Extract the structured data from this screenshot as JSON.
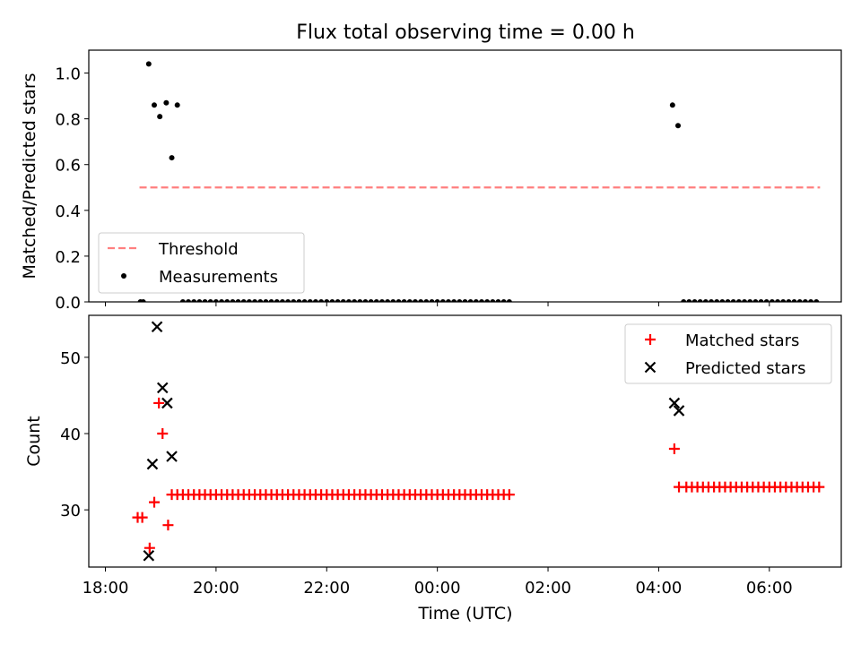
{
  "figure": {
    "title": "Flux total observing time = 0.00 h",
    "xlabel": "Time (UTC)"
  },
  "colors": {
    "threshold": "#ff7f7f",
    "measurement": "#000000",
    "matched": "#ff0000",
    "predicted": "#000000"
  },
  "chart_data": [
    {
      "type": "scatter",
      "title": "Flux total observing time = 0.00 h",
      "xlabel": "",
      "ylabel": "Matched/Predicted stars",
      "ylim": [
        0,
        1.1
      ],
      "yticks": [
        "0.0",
        "0.2",
        "0.4",
        "0.6",
        "0.8",
        "1.0"
      ],
      "legend": {
        "position": "lower-left",
        "entries": [
          "Threshold",
          "Measurements"
        ]
      },
      "series": [
        {
          "name": "Threshold",
          "kind": "dashed-line",
          "x": [
            "18:37",
            "06:55"
          ],
          "y": [
            0.5,
            0.5
          ]
        },
        {
          "name": "Measurements",
          "kind": "points",
          "x": [
            "18:38",
            "18:41",
            "18:47",
            "18:53",
            "18:59",
            "19:06",
            "19:12",
            "19:18",
            "19:24",
            "19:30",
            "19:36",
            "19:42",
            "19:48",
            "19:54",
            "20:00",
            "20:06",
            "20:12",
            "20:18",
            "20:24",
            "20:30",
            "20:36",
            "20:42",
            "20:48",
            "20:54",
            "21:00",
            "21:06",
            "21:12",
            "21:18",
            "21:24",
            "21:30",
            "21:36",
            "21:42",
            "21:48",
            "21:54",
            "22:00",
            "22:06",
            "22:12",
            "22:18",
            "22:24",
            "22:30",
            "22:36",
            "22:42",
            "22:48",
            "22:54",
            "23:00",
            "23:06",
            "23:12",
            "23:18",
            "23:24",
            "23:30",
            "23:36",
            "23:42",
            "23:48",
            "23:54",
            "00:00",
            "00:06",
            "00:12",
            "00:18",
            "00:24",
            "00:30",
            "00:36",
            "00:42",
            "00:48",
            "00:54",
            "01:00",
            "01:06",
            "01:12",
            "01:18",
            "04:15",
            "04:21",
            "04:27",
            "04:33",
            "04:39",
            "04:45",
            "04:51",
            "04:57",
            "05:03",
            "05:09",
            "05:15",
            "05:21",
            "05:27",
            "05:33",
            "05:39",
            "05:45",
            "05:51",
            "05:57",
            "06:03",
            "06:09",
            "06:15",
            "06:21",
            "06:27",
            "06:33",
            "06:39",
            "06:45",
            "06:51"
          ],
          "y": [
            0,
            0,
            1.04,
            0.86,
            0.81,
            0.87,
            0.63,
            0.86,
            0,
            0,
            0,
            0,
            0,
            0,
            0,
            0,
            0,
            0,
            0,
            0,
            0,
            0,
            0,
            0,
            0,
            0,
            0,
            0,
            0,
            0,
            0,
            0,
            0,
            0,
            0,
            0,
            0,
            0,
            0,
            0,
            0,
            0,
            0,
            0,
            0,
            0,
            0,
            0,
            0,
            0,
            0,
            0,
            0,
            0,
            0,
            0,
            0,
            0,
            0,
            0,
            0,
            0,
            0,
            0,
            0,
            0,
            0,
            0,
            0.86,
            0.77,
            0,
            0,
            0,
            0,
            0,
            0,
            0,
            0,
            0,
            0,
            0,
            0,
            0,
            0,
            0,
            0,
            0,
            0,
            0,
            0,
            0,
            0,
            0,
            0,
            0
          ]
        }
      ]
    },
    {
      "type": "scatter",
      "title": "",
      "xlabel": "Time (UTC)",
      "ylabel": "Count",
      "ylim": [
        22.5,
        55.5
      ],
      "yticks": [
        "30",
        "40",
        "50"
      ],
      "xticks": [
        "18:00",
        "20:00",
        "22:00",
        "00:00",
        "02:00",
        "04:00",
        "06:00"
      ],
      "legend": {
        "position": "top-right",
        "entries": [
          "Matched stars",
          "Predicted stars"
        ]
      },
      "series": [
        {
          "name": "Matched stars",
          "marker": "+",
          "x": [
            "18:35",
            "18:40",
            "18:48",
            "18:53",
            "18:58",
            "19:02",
            "19:08",
            "19:12",
            "19:18",
            "19:24",
            "19:30",
            "19:36",
            "19:42",
            "19:48",
            "19:54",
            "20:00",
            "20:06",
            "20:12",
            "20:18",
            "20:24",
            "20:30",
            "20:36",
            "20:42",
            "20:48",
            "20:54",
            "21:00",
            "21:06",
            "21:12",
            "21:18",
            "21:24",
            "21:30",
            "21:36",
            "21:42",
            "21:48",
            "21:54",
            "22:00",
            "22:06",
            "22:12",
            "22:18",
            "22:24",
            "22:30",
            "22:36",
            "22:42",
            "22:48",
            "22:54",
            "23:00",
            "23:06",
            "23:12",
            "23:18",
            "23:24",
            "23:30",
            "23:36",
            "23:42",
            "23:48",
            "23:54",
            "00:00",
            "00:06",
            "00:12",
            "00:18",
            "00:24",
            "00:30",
            "00:36",
            "00:42",
            "00:48",
            "00:54",
            "01:00",
            "01:06",
            "01:12",
            "01:18",
            "04:17",
            "04:22",
            "04:30",
            "04:36",
            "04:42",
            "04:48",
            "04:54",
            "05:00",
            "05:06",
            "05:12",
            "05:18",
            "05:24",
            "05:30",
            "05:36",
            "05:42",
            "05:48",
            "05:54",
            "06:00",
            "06:06",
            "06:12",
            "06:18",
            "06:24",
            "06:30",
            "06:36",
            "06:42",
            "06:48",
            "06:54"
          ],
          "y": [
            29,
            29,
            25,
            31,
            44,
            40,
            28,
            32,
            32,
            32,
            32,
            32,
            32,
            32,
            32,
            32,
            32,
            32,
            32,
            32,
            32,
            32,
            32,
            32,
            32,
            32,
            32,
            32,
            32,
            32,
            32,
            32,
            32,
            32,
            32,
            32,
            32,
            32,
            32,
            32,
            32,
            32,
            32,
            32,
            32,
            32,
            32,
            32,
            32,
            32,
            32,
            32,
            32,
            32,
            32,
            32,
            32,
            32,
            32,
            32,
            32,
            32,
            32,
            32,
            32,
            32,
            32,
            32,
            32,
            38,
            33,
            33,
            33,
            33,
            33,
            33,
            33,
            33,
            33,
            33,
            33,
            33,
            33,
            33,
            33,
            33,
            33,
            33,
            33,
            33,
            33,
            33,
            33,
            33,
            33,
            33
          ]
        },
        {
          "name": "Predicted stars",
          "marker": "x",
          "x": [
            "18:47",
            "18:51",
            "18:56",
            "19:02",
            "19:07",
            "19:12",
            "04:17",
            "04:22"
          ],
          "y": [
            24,
            36,
            54,
            46,
            44,
            37,
            44,
            43
          ]
        }
      ]
    }
  ]
}
